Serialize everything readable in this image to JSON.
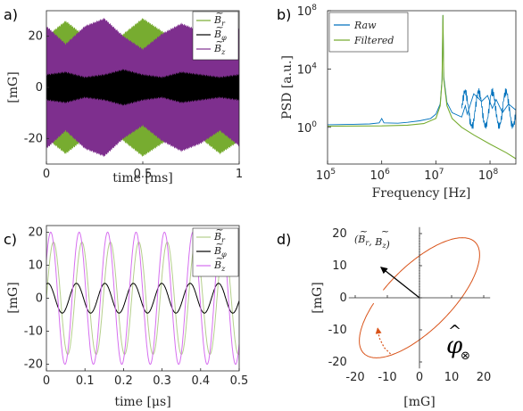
{
  "panels": {
    "a": {
      "label": "a)"
    },
    "b": {
      "label": "b)"
    },
    "c": {
      "label": "c)"
    },
    "d": {
      "label": "d)"
    }
  },
  "colors": {
    "green": "#77ac30",
    "black": "#000000",
    "purple": "#7e2f8e",
    "blue": "#0072bd",
    "orange": "#d95319"
  },
  "chart_data": [
    {
      "id": "a",
      "type": "area",
      "xlabel": "time [ms]",
      "ylabel": "[mG]",
      "xlim": [
        0,
        1
      ],
      "ylim": [
        -30,
        30
      ],
      "xticks": [
        0,
        0.5,
        1
      ],
      "xticklabels": [
        "0",
        "0.5",
        "1"
      ],
      "yticks": [
        -20,
        0,
        20
      ],
      "yticklabels": [
        "-20",
        "0",
        "20"
      ],
      "legend_position": "top-right",
      "series": [
        {
          "name": "B̃r",
          "base": "B",
          "subscript": "r",
          "color": "#77ac30",
          "x": [
            0,
            0.1,
            0.2,
            0.3,
            0.4,
            0.5,
            0.6,
            0.7,
            0.8,
            0.9,
            1
          ],
          "upper": [
            20,
            26,
            20,
            15,
            21,
            27,
            22,
            16,
            20,
            26,
            21
          ],
          "lower": [
            -20,
            -26,
            -20,
            -15,
            -21,
            -27,
            -22,
            -16,
            -20,
            -26,
            -21
          ]
        },
        {
          "name": "B̃z",
          "base": "B",
          "subscript": "z",
          "color": "#7e2f8e",
          "x": [
            0,
            0.1,
            0.2,
            0.3,
            0.4,
            0.5,
            0.6,
            0.7,
            0.8,
            0.9,
            1
          ],
          "upper": [
            24,
            17,
            24,
            27,
            20,
            15,
            21,
            25,
            22,
            17,
            23
          ],
          "lower": [
            -24,
            -17,
            -24,
            -27,
            -20,
            -15,
            -21,
            -25,
            -22,
            -17,
            -23
          ]
        },
        {
          "name": "B̃φ",
          "base": "B",
          "subscript": "φ",
          "color": "#000000",
          "x": [
            0,
            0.1,
            0.2,
            0.3,
            0.4,
            0.5,
            0.6,
            0.7,
            0.8,
            0.9,
            1
          ],
          "upper": [
            5,
            6,
            4,
            5,
            7,
            5,
            4,
            6,
            5,
            4,
            5
          ],
          "lower": [
            -5,
            -6,
            -4,
            -5,
            -7,
            -5,
            -4,
            -6,
            -5,
            -4,
            -5
          ]
        }
      ]
    },
    {
      "id": "b",
      "type": "line",
      "xlabel": "Frequency [Hz]",
      "ylabel": "PSD [a.u.]",
      "xscale": "log",
      "yscale": "log",
      "xlim": [
        100000,
        300000000
      ],
      "ylim": [
        0.003,
        100000000
      ],
      "xticks": [
        100000,
        1000000,
        10000000,
        100000000
      ],
      "xtick_base": "10",
      "xtick_exp": [
        "5",
        "6",
        "7",
        "8"
      ],
      "yticks": [
        1,
        10000,
        100000000
      ],
      "ytick_base": "10",
      "ytick_exp": [
        "0",
        "4",
        "8"
      ],
      "legend_position": "top-left",
      "series": [
        {
          "name": "Raw",
          "color": "#0072bd",
          "x": [
            100000,
            300000,
            600000,
            900000,
            1000000,
            1100000,
            2000000,
            3000000,
            5000000,
            8000000,
            10000000,
            12000000,
            13000000,
            13500000,
            14000000,
            16000000,
            20000000,
            30000000,
            35000000,
            38000000,
            50000000,
            70000000,
            90000000,
            110000000,
            130000000,
            170000000,
            220000000,
            300000000
          ],
          "y": [
            1.5,
            1.6,
            1.7,
            2.0,
            4.0,
            2.0,
            1.9,
            2.2,
            2.8,
            4.0,
            8.0,
            40,
            2000,
            50000000,
            3000,
            50,
            10,
            5,
            30,
            8,
            200,
            60,
            150,
            20,
            80,
            10,
            40,
            15
          ]
        },
        {
          "name": "Filtered",
          "color": "#77ac30",
          "x": [
            100000,
            1000000,
            3000000,
            6000000,
            10000000,
            12000000,
            13000000,
            13500000,
            14000000,
            16000000,
            20000000,
            30000000,
            50000000,
            100000000,
            200000000,
            300000000
          ],
          "y": [
            1.2,
            1.25,
            1.4,
            1.8,
            4.0,
            30,
            1500,
            50000000,
            2000,
            30,
            4,
            1,
            0.3,
            0.07,
            0.018,
            0.007
          ]
        }
      ]
    },
    {
      "id": "c",
      "type": "line",
      "xlabel": "time [μs]",
      "ylabel": "[mG]",
      "xlim": [
        0,
        0.5
      ],
      "ylim": [
        -22,
        22
      ],
      "xticks": [
        0,
        0.1,
        0.2,
        0.3,
        0.4,
        0.5
      ],
      "xticklabels": [
        "0",
        "0.1",
        "0.2",
        "0.3",
        "0.4",
        "0.5"
      ],
      "yticks": [
        -20,
        -10,
        0,
        10,
        20
      ],
      "yticklabels": [
        "-20",
        "-10",
        "0",
        "10",
        "20"
      ],
      "legend_position": "top-right",
      "series": [
        {
          "name": "B̃r",
          "base": "B",
          "subscript": "r",
          "color": "#b5cf8c",
          "amplitude": 17,
          "frequency_mhz": 13.56,
          "phase_deg": 0
        },
        {
          "name": "B̃φ",
          "base": "B",
          "subscript": "φ",
          "color": "#000000",
          "amplitude": 4.5,
          "frequency_mhz": 13.56,
          "phase_deg": 70
        },
        {
          "name": "B̃z",
          "base": "B",
          "subscript": "z",
          "color": "#d66ff0",
          "amplitude": 20,
          "frequency_mhz": 13.56,
          "phase_deg": 35
        }
      ]
    },
    {
      "id": "d",
      "type": "line",
      "xlabel": "[mG]",
      "ylabel": "[mG]",
      "xlim": [
        -22,
        22
      ],
      "ylim": [
        -22,
        22
      ],
      "xticks": [
        -20,
        -10,
        0,
        10,
        20
      ],
      "xticklabels": [
        "-20",
        "-10",
        "0",
        "10",
        "20"
      ],
      "yticks": [
        -20,
        -10,
        0,
        10,
        20
      ],
      "yticklabels": [
        "-20",
        "-10",
        "0",
        "10",
        "20"
      ],
      "annotation": {
        "text": "(B̃r, B̃z)",
        "base": "B",
        "sub1": "r",
        "sub2": "z"
      },
      "symbol": {
        "text": "φ̂⊗",
        "main": "φ",
        "hat": "^",
        "mark": "⊗"
      },
      "ellipse": {
        "color": "#d95319",
        "center": [
          0,
          0
        ],
        "semi_major": 24.5,
        "semi_minor": 10,
        "angle_deg": 45
      },
      "vector": {
        "from": [
          0,
          0
        ],
        "to": [
          -12,
          9.5
        ],
        "color": "#000000"
      },
      "reference_line": {
        "from": [
          0,
          0
        ],
        "to": [
          0,
          20
        ]
      },
      "direction_arrow": {
        "color": "#d95319",
        "x": [
          -9,
          -11,
          -12.5,
          -13
        ],
        "y": [
          -17.5,
          -15.5,
          -12.5,
          -9.5
        ]
      }
    }
  ]
}
